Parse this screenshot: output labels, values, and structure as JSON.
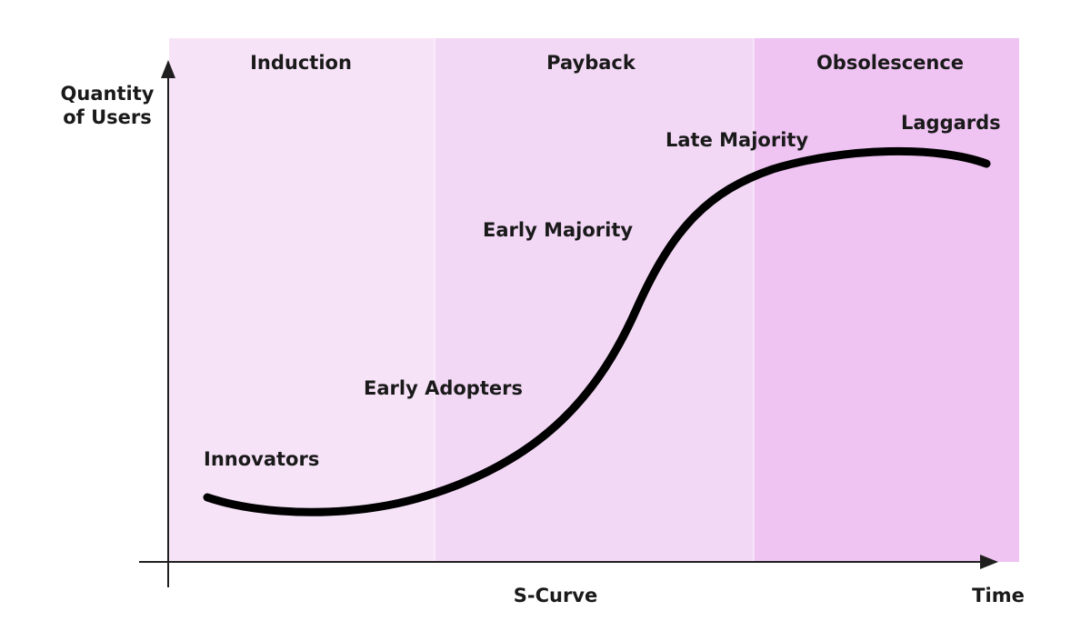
{
  "phases": [
    {
      "label": "Induction",
      "color": "#f7e3f8"
    },
    {
      "label": "Payback",
      "color": "#f3d8f6"
    },
    {
      "label": "Obsolescence",
      "color": "#efc3f2"
    }
  ],
  "stages": [
    {
      "label": "Innovators"
    },
    {
      "label": "Early Adopters"
    },
    {
      "label": "Early Majority"
    },
    {
      "label": "Late Majority"
    },
    {
      "label": "Laggards"
    }
  ],
  "axes": {
    "y_label_line1": "Quantity",
    "y_label_line2": "of Users",
    "x_label": "Time",
    "axis_color": "#1f1f1f"
  },
  "caption": "S-Curve",
  "curve_color": "#000000"
}
